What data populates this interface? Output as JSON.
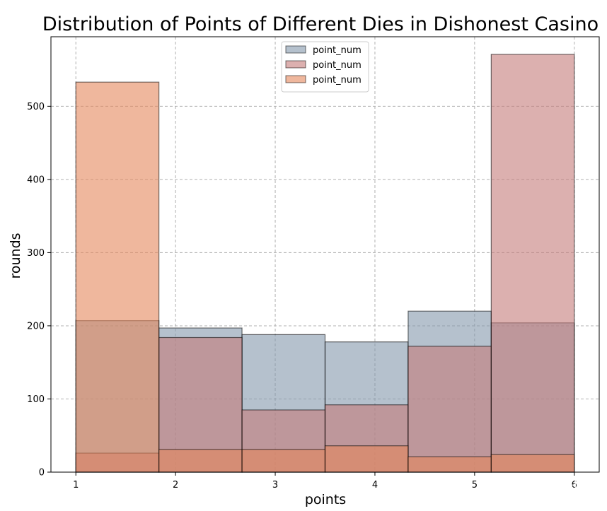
{
  "chart_data": {
    "type": "bar",
    "title": "Distribution of Points of Different Dies in Dishonest Casino",
    "xlabel": "points",
    "ylabel": "rounds",
    "xlim": [
      0.75,
      6.25
    ],
    "ylim": [
      0,
      595
    ],
    "xticks": [
      "1",
      "2",
      "3",
      "4",
      "5",
      "6"
    ],
    "yticks": [
      "0",
      "100",
      "200",
      "300",
      "400",
      "500"
    ],
    "bin_edges": [
      1.0,
      1.8333,
      2.6667,
      3.5,
      4.3333,
      5.1667,
      6.0
    ],
    "grid": true,
    "legend_position": "top-center",
    "series": [
      {
        "name": "point_num",
        "color": "#8497ab",
        "values": [
          207,
          197,
          188,
          178,
          220,
          204
        ]
      },
      {
        "name": "point_num",
        "color": "#c47c7a",
        "values": [
          26,
          184,
          85,
          92,
          172,
          571
        ]
      },
      {
        "name": "point_num",
        "color": "#e4875b",
        "values": [
          533,
          31,
          31,
          36,
          21,
          24
        ]
      }
    ]
  },
  "watermark": "知乎 @欧阳静"
}
